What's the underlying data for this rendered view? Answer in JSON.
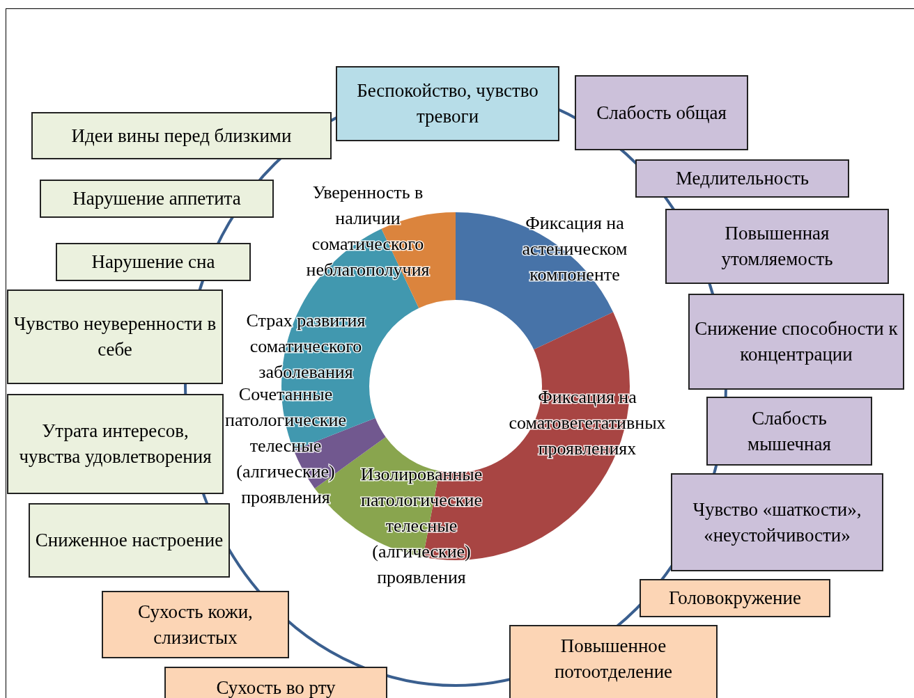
{
  "chart_data": {
    "type": "donut",
    "categories": [
      "Фиксация на астеническом компоненте",
      "Фиксация на соматовегетативных проявлениях",
      "Изолированные патологические телесные (алгические) проявления",
      "Сочетанные патологические телесные (алгические) проявления",
      "Страх развития соматического заболевания",
      "Уверенность в наличии соматического неблагополучия"
    ],
    "values": [
      18,
      35,
      12,
      4,
      24,
      7
    ],
    "colors": [
      "#4773a8",
      "#a84543",
      "#89a54e",
      "#71588f",
      "#4198af",
      "#db843d"
    ],
    "legend": false,
    "annotations": [
      "Беспокойство, чувство тревоги",
      "Слабость общая",
      "Медлительность",
      "Повышенная утомляемость",
      "Снижение способности к концентрации",
      "Слабость мышечная",
      "Чувство «шаткости», «неустойчивости»",
      "Головокружение",
      "Повышенное потоотделение",
      "Сухость во рту",
      "Сухость кожи, слизистых",
      "Сниженное настроение",
      "Утрата интересов, чувства удовлетворения",
      "Чувство неуверенности в себе",
      "Нарушение сна",
      "Нарушение аппетита",
      "Идеи вины перед близкими"
    ]
  }
}
